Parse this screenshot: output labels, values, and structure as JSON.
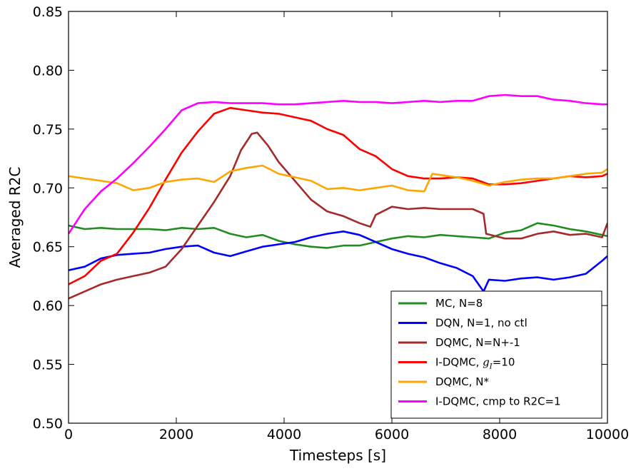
{
  "chart_data": {
    "type": "line",
    "title": "",
    "xlabel": "Timesteps [s]",
    "ylabel": "Averaged R2C",
    "xlim": [
      0,
      10000
    ],
    "ylim": [
      0.5,
      0.85
    ],
    "xticks": [
      0,
      2000,
      4000,
      6000,
      8000,
      10000
    ],
    "yticks": [
      0.5,
      0.55,
      0.6,
      0.65,
      0.7,
      0.75,
      0.8,
      0.85
    ],
    "xtick_labels": [
      "0",
      "2000",
      "4000",
      "6000",
      "8000",
      "10000"
    ],
    "ytick_labels": [
      "0.50",
      "0.55",
      "0.60",
      "0.65",
      "0.70",
      "0.75",
      "0.80",
      "0.85"
    ],
    "grid": false,
    "legend_position": "bottom-right",
    "series": [
      {
        "name": "MC, N=8",
        "color": "#228b22",
        "x": [
          0,
          300,
          600,
          900,
          1200,
          1500,
          1800,
          2100,
          2400,
          2700,
          3000,
          3300,
          3600,
          3900,
          4200,
          4500,
          4800,
          5100,
          5400,
          5700,
          6000,
          6300,
          6600,
          6900,
          7200,
          7500,
          7800,
          8100,
          8400,
          8700,
          9000,
          9300,
          9600,
          9900,
          10000
        ],
        "y": [
          0.668,
          0.665,
          0.666,
          0.665,
          0.665,
          0.665,
          0.664,
          0.666,
          0.665,
          0.666,
          0.661,
          0.658,
          0.66,
          0.655,
          0.652,
          0.65,
          0.649,
          0.651,
          0.651,
          0.654,
          0.657,
          0.659,
          0.658,
          0.66,
          0.659,
          0.658,
          0.657,
          0.662,
          0.664,
          0.67,
          0.668,
          0.665,
          0.663,
          0.66,
          0.659
        ]
      },
      {
        "name": "DQN, N=1, no ctl",
        "color": "#0000ff",
        "x": [
          0,
          300,
          600,
          900,
          1200,
          1500,
          1800,
          2100,
          2400,
          2700,
          3000,
          3300,
          3600,
          3900,
          4200,
          4500,
          4800,
          5100,
          5400,
          5700,
          6000,
          6300,
          6600,
          6900,
          7200,
          7500,
          7700,
          7800,
          8100,
          8400,
          8700,
          9000,
          9300,
          9600,
          9900,
          10000
        ],
        "y": [
          0.63,
          0.633,
          0.64,
          0.643,
          0.644,
          0.645,
          0.648,
          0.65,
          0.651,
          0.645,
          0.642,
          0.646,
          0.65,
          0.652,
          0.654,
          0.658,
          0.661,
          0.663,
          0.66,
          0.654,
          0.648,
          0.644,
          0.641,
          0.636,
          0.632,
          0.625,
          0.612,
          0.622,
          0.621,
          0.623,
          0.624,
          0.622,
          0.624,
          0.627,
          0.638,
          0.642
        ]
      },
      {
        "name": "DQMC, N=N+-1",
        "color": "#a52a2a",
        "x": [
          0,
          300,
          600,
          900,
          1200,
          1500,
          1800,
          2100,
          2400,
          2700,
          3000,
          3200,
          3400,
          3500,
          3700,
          3900,
          4200,
          4500,
          4800,
          5100,
          5400,
          5600,
          5700,
          6000,
          6300,
          6600,
          6900,
          7200,
          7500,
          7700,
          7750,
          8100,
          8400,
          8700,
          9000,
          9300,
          9600,
          9900,
          10000
        ],
        "y": [
          0.606,
          0.612,
          0.618,
          0.622,
          0.625,
          0.628,
          0.633,
          0.648,
          0.668,
          0.688,
          0.71,
          0.732,
          0.746,
          0.747,
          0.736,
          0.722,
          0.706,
          0.69,
          0.68,
          0.676,
          0.67,
          0.667,
          0.677,
          0.684,
          0.682,
          0.683,
          0.682,
          0.682,
          0.682,
          0.678,
          0.661,
          0.657,
          0.657,
          0.661,
          0.663,
          0.66,
          0.661,
          0.658,
          0.67
        ]
      },
      {
        "name": "I-DQMC, g_I=10",
        "name_display": "I-DQMC, gI=10",
        "color": "#ff0000",
        "x": [
          0,
          300,
          600,
          900,
          1200,
          1500,
          1800,
          2100,
          2400,
          2700,
          3000,
          3300,
          3600,
          3900,
          4200,
          4500,
          4800,
          5100,
          5400,
          5700,
          6000,
          6300,
          6600,
          6900,
          7200,
          7500,
          7800,
          8100,
          8400,
          8700,
          9000,
          9300,
          9600,
          9900,
          10000
        ],
        "y": [
          0.618,
          0.625,
          0.638,
          0.644,
          0.662,
          0.683,
          0.707,
          0.73,
          0.748,
          0.763,
          0.768,
          0.766,
          0.764,
          0.763,
          0.76,
          0.757,
          0.75,
          0.745,
          0.733,
          0.727,
          0.716,
          0.71,
          0.708,
          0.708,
          0.709,
          0.708,
          0.703,
          0.703,
          0.704,
          0.706,
          0.708,
          0.71,
          0.709,
          0.71,
          0.712
        ]
      },
      {
        "name": "DQMC, N*",
        "color": "#ffa500",
        "x": [
          0,
          300,
          600,
          900,
          1200,
          1500,
          1800,
          2100,
          2400,
          2700,
          3000,
          3300,
          3600,
          3900,
          4200,
          4500,
          4800,
          5100,
          5400,
          5700,
          6000,
          6300,
          6600,
          6750,
          6900,
          7200,
          7500,
          7800,
          8100,
          8400,
          8700,
          9000,
          9300,
          9600,
          9900,
          10000
        ],
        "y": [
          0.71,
          0.708,
          0.706,
          0.704,
          0.698,
          0.7,
          0.705,
          0.707,
          0.708,
          0.705,
          0.714,
          0.717,
          0.719,
          0.712,
          0.709,
          0.706,
          0.699,
          0.7,
          0.698,
          0.7,
          0.702,
          0.698,
          0.697,
          0.712,
          0.711,
          0.709,
          0.706,
          0.702,
          0.705,
          0.707,
          0.708,
          0.708,
          0.71,
          0.712,
          0.713,
          0.716
        ]
      },
      {
        "name": "I-DQMC, cmp to R2C=1",
        "color": "#ff00ff",
        "x": [
          0,
          300,
          600,
          900,
          1200,
          1500,
          1800,
          2100,
          2400,
          2700,
          3000,
          3300,
          3600,
          3900,
          4200,
          4500,
          4800,
          5100,
          5400,
          5700,
          6000,
          6300,
          6600,
          6900,
          7200,
          7500,
          7800,
          8100,
          8400,
          8700,
          9000,
          9300,
          9600,
          9900,
          10000
        ],
        "y": [
          0.661,
          0.682,
          0.697,
          0.708,
          0.721,
          0.735,
          0.75,
          0.766,
          0.772,
          0.773,
          0.772,
          0.772,
          0.772,
          0.771,
          0.771,
          0.772,
          0.773,
          0.774,
          0.773,
          0.773,
          0.772,
          0.773,
          0.774,
          0.773,
          0.774,
          0.774,
          0.778,
          0.779,
          0.778,
          0.778,
          0.775,
          0.774,
          0.772,
          0.771,
          0.771
        ]
      }
    ]
  }
}
